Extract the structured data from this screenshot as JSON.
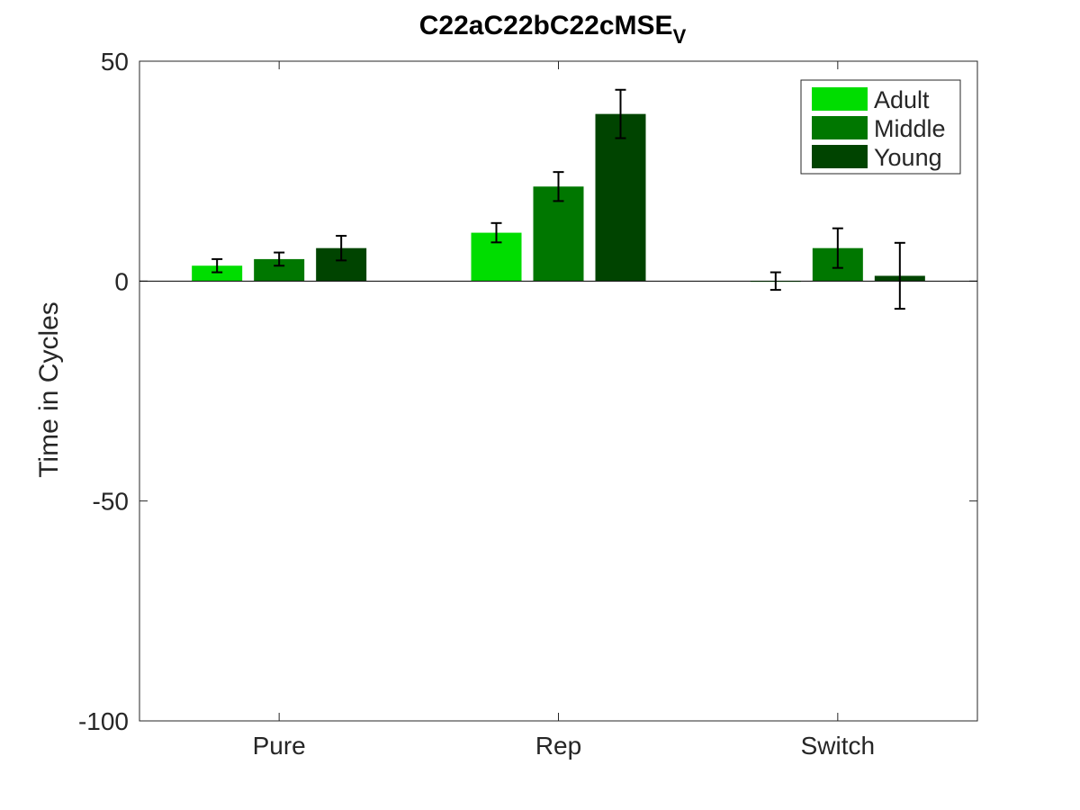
{
  "chart_data": {
    "type": "bar",
    "title": "C22aC22bC22cMSE",
    "title_subscript": "V",
    "xlabel": "",
    "ylabel": "Time in Cycles",
    "ylim": [
      -100,
      50
    ],
    "yticks": [
      50,
      0,
      -50,
      -100
    ],
    "categories": [
      "Pure",
      "Rep",
      "Switch"
    ],
    "grid": false,
    "legend_position": "top-right",
    "series": [
      {
        "name": "Adult",
        "color": "#00dd00",
        "values": [
          3.5,
          11,
          0
        ],
        "errors": [
          1.5,
          2.2,
          2.0
        ]
      },
      {
        "name": "Middle",
        "color": "#007700",
        "values": [
          5,
          21.5,
          7.5
        ],
        "errors": [
          1.5,
          3.3,
          4.5
        ]
      },
      {
        "name": "Young",
        "color": "#004400",
        "values": [
          7.5,
          38,
          1.2
        ],
        "errors": [
          2.8,
          5.5,
          7.5
        ]
      }
    ]
  }
}
